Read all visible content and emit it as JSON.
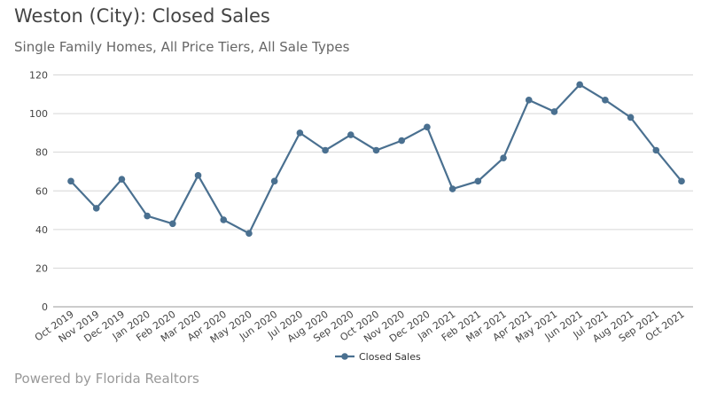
{
  "title": "Weston (City): Closed Sales",
  "subtitle": "Single Family Homes, All Price Tiers, All Sale Types",
  "footer": "Powered by Florida Realtors",
  "chart_data": {
    "type": "line",
    "title": "Weston (City): Closed Sales",
    "subtitle": "Single Family Homes, All Price Tiers, All Sale Types",
    "categories": [
      "Oct 2019",
      "Nov 2019",
      "Dec 2019",
      "Jan 2020",
      "Feb 2020",
      "Mar 2020",
      "Apr 2020",
      "May 2020",
      "Jun 2020",
      "Jul 2020",
      "Aug 2020",
      "Sep 2020",
      "Oct 2020",
      "Nov 2020",
      "Dec 2020",
      "Jan 2021",
      "Feb 2021",
      "Mar 2021",
      "Apr 2021",
      "May 2021",
      "Jun 2021",
      "Jul 2021",
      "Aug 2021",
      "Sep 2021",
      "Oct 2021"
    ],
    "series": [
      {
        "name": "Closed Sales",
        "color": "#4a7090",
        "values": [
          65,
          51,
          66,
          47,
          43,
          68,
          45,
          38,
          65,
          90,
          81,
          89,
          81,
          86,
          93,
          61,
          65,
          77,
          107,
          101,
          115,
          107,
          98,
          81,
          65
        ]
      }
    ],
    "ylim": [
      0,
      120
    ],
    "yticks": [
      0,
      20,
      40,
      60,
      80,
      100,
      120
    ],
    "grid": true,
    "legend": "bottom"
  }
}
